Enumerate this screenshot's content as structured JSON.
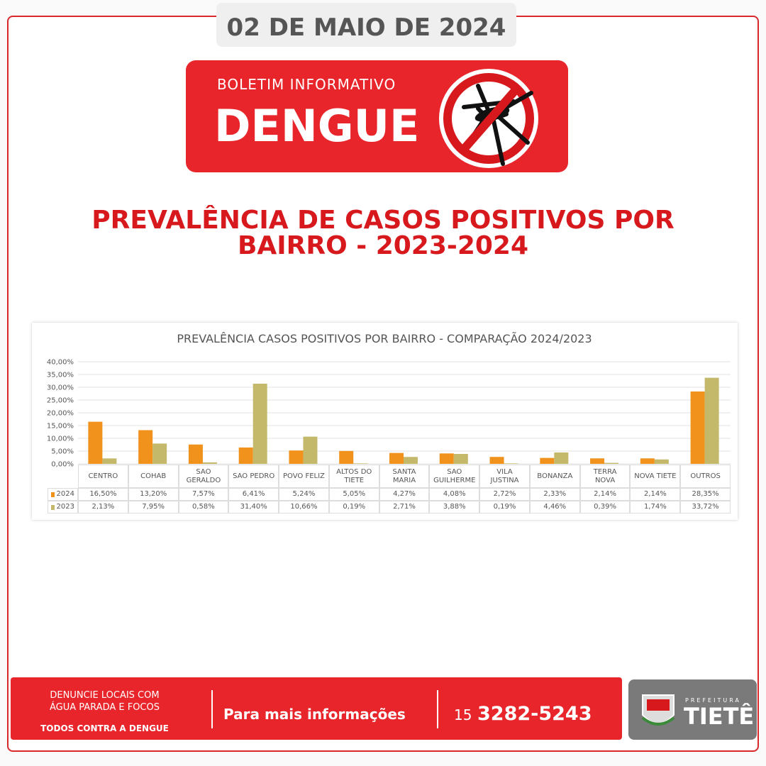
{
  "header": {
    "date": "02 DE MAIO DE 2024",
    "bulletin": "BOLETIM INFORMATIVO",
    "topic": "DENGUE",
    "title_line1": "PREVALÊNCIA DE CASOS POSITIVOS POR",
    "title_line2": "BAIRRO - 2023-2024"
  },
  "chart_data": {
    "type": "bar",
    "title": "PREVALÊNCIA CASOS POSITIVOS POR BAIRRO - COMPARAÇÃO 2024/2023",
    "categories": [
      "CENTRO",
      "COHAB",
      "SAO GERALDO",
      "SAO PEDRO",
      "POVO FELIZ",
      "ALTOS DO TIETE",
      "SANTA MARIA",
      "SAO GUILHERME",
      "VILA JUSTINA",
      "BONANZA",
      "TERRA NOVA",
      "NOVA TIETE",
      "OUTROS"
    ],
    "series": [
      {
        "name": "2024",
        "color": "#f0921c",
        "values": [
          16.5,
          13.2,
          7.57,
          6.41,
          5.24,
          5.05,
          4.27,
          4.08,
          2.72,
          2.33,
          2.14,
          2.14,
          28.35
        ],
        "value_labels": [
          "16,50%",
          "13,20%",
          "7,57%",
          "6,41%",
          "5,24%",
          "5,05%",
          "4,27%",
          "4,08%",
          "2,72%",
          "2,33%",
          "2,14%",
          "2,14%",
          "28,35%"
        ]
      },
      {
        "name": "2023",
        "color": "#c4b86a",
        "values": [
          2.13,
          7.95,
          0.58,
          31.4,
          10.66,
          0.19,
          2.71,
          3.88,
          0.19,
          4.46,
          0.39,
          1.74,
          33.72
        ],
        "value_labels": [
          "2,13%",
          "7,95%",
          "0,58%",
          "31,40%",
          "10,66%",
          "0,19%",
          "2,71%",
          "3,88%",
          "0,19%",
          "4,46%",
          "0,39%",
          "1,74%",
          "33,72%"
        ]
      }
    ],
    "ylim": [
      0,
      40
    ],
    "yticks": [
      {
        "value": 0,
        "label": "0,00%"
      },
      {
        "value": 5,
        "label": "5,00%"
      },
      {
        "value": 10,
        "label": "10,00%"
      },
      {
        "value": 15,
        "label": "15,00%"
      },
      {
        "value": 20,
        "label": "20,00%"
      },
      {
        "value": 25,
        "label": "25,00%"
      },
      {
        "value": 30,
        "label": "30,00%"
      },
      {
        "value": 35,
        "label": "35,00%"
      },
      {
        "value": 40,
        "label": "40,00%"
      }
    ],
    "grid": true
  },
  "footer": {
    "line1": "DENUNCIE LOCAIS COM",
    "line2": "ÁGUA PARADA E FOCOS",
    "slogan": "TODOS CONTRA A DENGUE",
    "info": "Para mais informações",
    "area_code": "15",
    "phone": "3282-5243",
    "logo_top": "PREFEITURA",
    "logo_name": "TIETÊ"
  }
}
